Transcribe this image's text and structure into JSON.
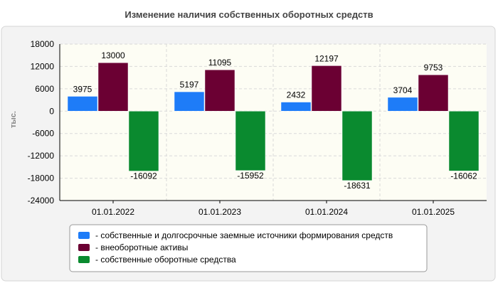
{
  "chart_data": {
    "type": "bar",
    "title": "Изменение наличия собственных оборотных средств",
    "ylabel": "тыс.",
    "xlabel": "",
    "ylim": [
      -24000,
      18000
    ],
    "yticks": [
      18000,
      12000,
      6000,
      0,
      -6000,
      -12000,
      -18000,
      -24000
    ],
    "grid": true,
    "legend_position": "bottom",
    "categories": [
      "01.01.2022",
      "01.01.2023",
      "01.01.2024",
      "01.01.2025"
    ],
    "series": [
      {
        "name": "- собственные и долгосрочные заемные источники формирования средств",
        "color": "#1e7cf8",
        "values": [
          3975,
          5197,
          2432,
          3704
        ]
      },
      {
        "name": "- внеоборотные активы",
        "color": "#6b0033",
        "values": [
          13000,
          11095,
          12197,
          9753
        ]
      },
      {
        "name": "- собственные оборотные средства",
        "color": "#0a8a2f",
        "values": [
          -16092,
          -15952,
          -18631,
          -16062
        ]
      }
    ]
  }
}
